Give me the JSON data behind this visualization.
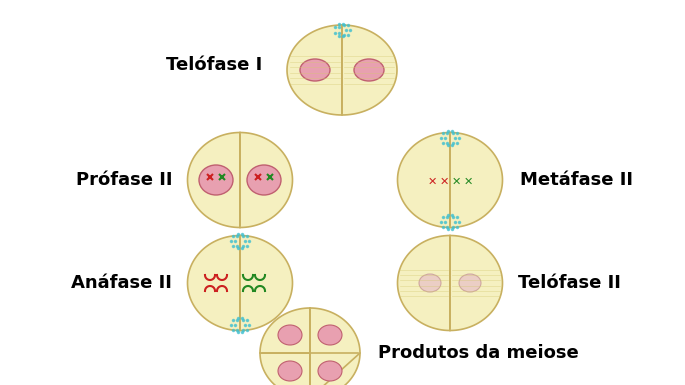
{
  "background_color": "#ffffff",
  "cell_fill": "#f5f0c0",
  "cell_edge": "#c8b060",
  "nucleus_fill": "#e8a0b0",
  "nucleus_edge": "#c06070",
  "labels": {
    "telofase1": "Telófase I",
    "profase2": "Prófase II",
    "metafase2": "Metáfase II",
    "anafase2": "Anáfase II",
    "telofase2": "Telófase II",
    "produtos": "Produtos da meiose"
  },
  "label_fontsize": 13,
  "label_fontweight": "bold",
  "cyan_dot_color": "#40c0d0",
  "red_chrom_color": "#cc2020",
  "green_chrom_color": "#228822",
  "spindle_color": "#d4c890",
  "pale_nucleus": "#e8c0c8"
}
